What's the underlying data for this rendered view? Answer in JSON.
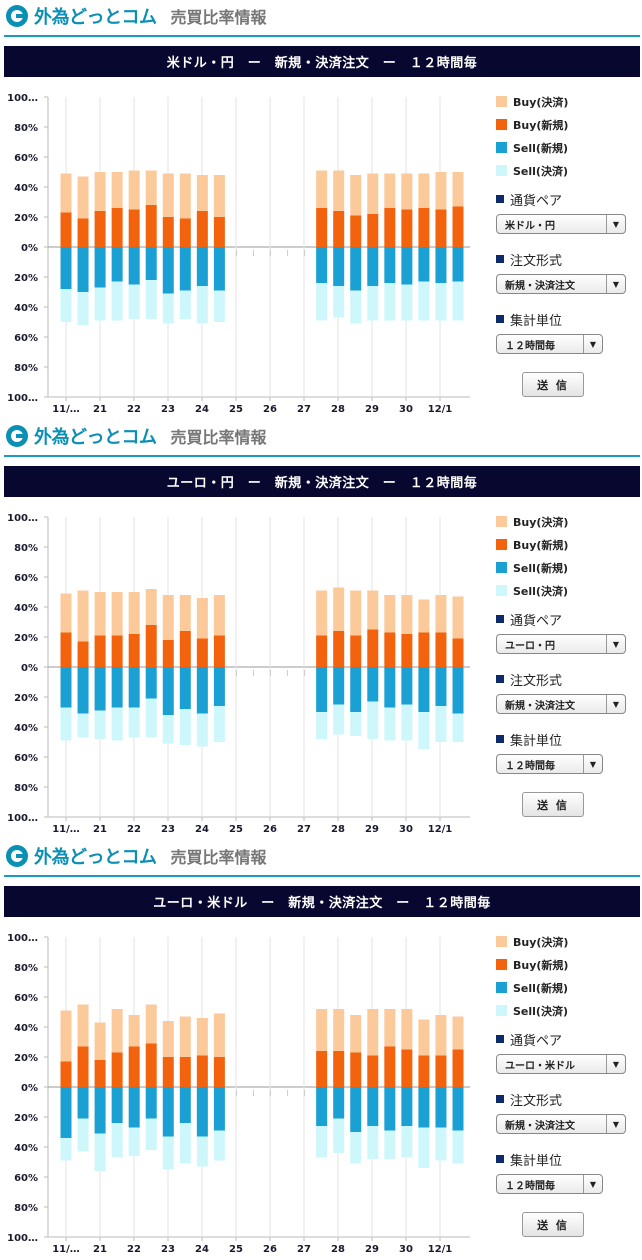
{
  "header": {
    "brand": "外為どっとコム",
    "subtitle": "売買比率情報"
  },
  "legend": {
    "buy_settle": "Buy(決済)",
    "buy_new": "Buy(新規)",
    "sell_new": "Sell(新規)",
    "sell_settle": "Sell(決済)"
  },
  "colors": {
    "buy_settle": "#fcc99a",
    "buy_new": "#f3630d",
    "sell_new": "#1aa0d3",
    "sell_settle": "#cdf7fb",
    "title_bar": "#07072f",
    "accent": "#0a8fb5"
  },
  "form": {
    "pair_label": "通貨ペア",
    "order_label": "注文形式",
    "order_value": "新規・決済注文",
    "unit_label": "集計単位",
    "unit_value": "１２時間毎",
    "submit_label": "送 信"
  },
  "panels": [
    {
      "title": "米ドル・円　ー　新規・決済注文　ー　１２時間毎",
      "pair_value": "米ドル・円"
    },
    {
      "title": "ユーロ・円　ー　新規・決済注文　ー　１２時間毎",
      "pair_value": "ユーロ・円"
    },
    {
      "title": "ユーロ・米ドル　ー　新規・決済注文　ー　１２時間毎",
      "pair_value": "ユーロ・米ドル"
    }
  ],
  "chart_data": [
    {
      "type": "bar",
      "stacked": true,
      "x_labels": [
        "11/…",
        "21",
        "22",
        "23",
        "24",
        "25",
        "26",
        "27",
        "28",
        "29",
        "30",
        "12/1"
      ],
      "y_ticks": [
        "100…",
        "80%",
        "60%",
        "40%",
        "20%",
        "0%",
        "20%",
        "40%",
        "60%",
        "80%",
        "100…"
      ],
      "ylim": [
        -100,
        100
      ],
      "grid": true,
      "legend_position": "right",
      "series": [
        {
          "name": "Buy(新規)",
          "values": [
            23,
            19,
            24,
            26,
            25,
            28,
            20,
            19,
            24,
            20,
            null,
            null,
            null,
            null,
            null,
            26,
            24,
            21,
            22,
            26,
            25,
            26,
            25,
            27
          ]
        },
        {
          "name": "Buy(決済)",
          "values": [
            26,
            28,
            26,
            24,
            26,
            23,
            29,
            30,
            24,
            28,
            null,
            null,
            null,
            null,
            null,
            25,
            27,
            27,
            27,
            23,
            24,
            23,
            25,
            23
          ]
        },
        {
          "name": "Sell(新規)",
          "values": [
            28,
            30,
            27,
            23,
            25,
            22,
            31,
            29,
            26,
            29,
            null,
            null,
            null,
            null,
            null,
            24,
            26,
            29,
            26,
            24,
            25,
            23,
            24,
            23
          ]
        },
        {
          "name": "Sell(決済)",
          "values": [
            22,
            22,
            22,
            26,
            23,
            26,
            20,
            19,
            25,
            21,
            null,
            null,
            null,
            null,
            null,
            25,
            21,
            22,
            23,
            25,
            24,
            26,
            25,
            26
          ]
        }
      ]
    },
    {
      "type": "bar",
      "stacked": true,
      "x_labels": [
        "11/…",
        "21",
        "22",
        "23",
        "24",
        "25",
        "26",
        "27",
        "28",
        "29",
        "30",
        "12/1"
      ],
      "y_ticks": [
        "100…",
        "80%",
        "60%",
        "40%",
        "20%",
        "0%",
        "20%",
        "40%",
        "60%",
        "80%",
        "100…"
      ],
      "ylim": [
        -100,
        100
      ],
      "grid": true,
      "legend_position": "right",
      "series": [
        {
          "name": "Buy(新規)",
          "values": [
            23,
            17,
            21,
            21,
            22,
            28,
            18,
            24,
            19,
            21,
            null,
            null,
            null,
            null,
            null,
            21,
            24,
            21,
            25,
            23,
            22,
            23,
            23,
            19
          ]
        },
        {
          "name": "Buy(決済)",
          "values": [
            26,
            34,
            29,
            29,
            28,
            24,
            30,
            24,
            27,
            27,
            null,
            null,
            null,
            null,
            null,
            30,
            29,
            30,
            26,
            25,
            26,
            22,
            25,
            28
          ]
        },
        {
          "name": "Sell(新規)",
          "values": [
            27,
            31,
            29,
            27,
            27,
            21,
            32,
            28,
            31,
            26,
            null,
            null,
            null,
            null,
            null,
            30,
            25,
            30,
            23,
            27,
            25,
            30,
            26,
            31
          ]
        },
        {
          "name": "Sell(決済)",
          "values": [
            22,
            16,
            19,
            22,
            20,
            26,
            19,
            24,
            22,
            24,
            null,
            null,
            null,
            null,
            null,
            18,
            20,
            16,
            25,
            22,
            24,
            25,
            24,
            19
          ]
        }
      ]
    },
    {
      "type": "bar",
      "stacked": true,
      "x_labels": [
        "11/…",
        "21",
        "22",
        "23",
        "24",
        "25",
        "26",
        "27",
        "28",
        "29",
        "30",
        "12/1"
      ],
      "y_ticks": [
        "100…",
        "80%",
        "60%",
        "40%",
        "20%",
        "0%",
        "20%",
        "40%",
        "60%",
        "80%",
        "100…"
      ],
      "ylim": [
        -100,
        100
      ],
      "grid": true,
      "legend_position": "right",
      "series": [
        {
          "name": "Buy(新規)",
          "values": [
            17,
            27,
            18,
            23,
            27,
            29,
            20,
            20,
            21,
            20,
            null,
            null,
            null,
            null,
            null,
            24,
            24,
            23,
            21,
            27,
            25,
            21,
            21,
            25
          ]
        },
        {
          "name": "Buy(決済)",
          "values": [
            34,
            28,
            25,
            29,
            21,
            26,
            24,
            27,
            25,
            29,
            null,
            null,
            null,
            null,
            null,
            28,
            28,
            25,
            31,
            25,
            27,
            24,
            27,
            22
          ]
        },
        {
          "name": "Sell(新規)",
          "values": [
            34,
            21,
            31,
            24,
            27,
            21,
            33,
            24,
            33,
            29,
            null,
            null,
            null,
            null,
            null,
            26,
            21,
            30,
            26,
            29,
            26,
            27,
            27,
            29
          ]
        },
        {
          "name": "Sell(決済)",
          "values": [
            15,
            22,
            25,
            23,
            19,
            21,
            22,
            27,
            20,
            20,
            null,
            null,
            null,
            null,
            null,
            21,
            23,
            21,
            22,
            19,
            21,
            27,
            22,
            22
          ]
        }
      ]
    }
  ]
}
